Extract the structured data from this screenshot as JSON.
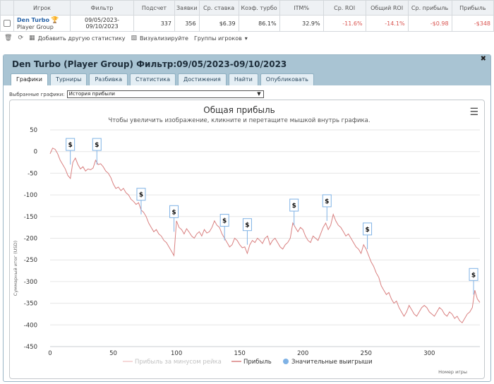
{
  "table": {
    "headers": [
      "Игрок",
      "Фильтр",
      "Подсчет",
      "Заявки",
      "Ср. ставка",
      "Коэф. турбо",
      "ITM%",
      "Ср. ROI",
      "Общий ROI",
      "Ср. прибыль",
      "Прибыль"
    ],
    "row": {
      "player_name": "Den Turbo",
      "player_group": "Player Group",
      "filter_line1": "09/05/2023-",
      "filter_line2": "09/10/2023",
      "count": "337",
      "entries": "356",
      "avg_stake": "$6.39",
      "turbo_coef": "86.1%",
      "itm": "32.9%",
      "avg_roi": "-11.6%",
      "total_roi": "-14.1%",
      "avg_profit": "-$0.98",
      "profit": "-$348"
    }
  },
  "toolbar": {
    "add_stats": "Добавить другую статистику",
    "visualize": "Визуализируйте",
    "player_groups": "Группы игроков"
  },
  "panel": {
    "title": "Den Turbo (Player Group) Фильтр:09/05/2023-09/10/2023",
    "tabs": [
      "Графики",
      "Турниры",
      "Разбивка",
      "Статистика",
      "Достижения",
      "Найти",
      "Опубликовать"
    ],
    "active_tab": 0,
    "select_label": "Выбранные графики:",
    "select_value": "История прибыли"
  },
  "chart_data": {
    "type": "line",
    "title": "Общая прибыль",
    "subtitle": "Чтобы увеличить изображение, кликните и перетащите мышкой внутрь графика.",
    "xlabel": "Номер игры",
    "ylabel": "Суммарный итог (USD)",
    "xlim": [
      0,
      340
    ],
    "ylim": [
      -450,
      50
    ],
    "x_ticks": [
      0,
      50,
      100,
      150,
      200,
      250,
      300
    ],
    "y_ticks": [
      50,
      0,
      -50,
      -100,
      -150,
      -200,
      -250,
      -300,
      -350,
      -400,
      -450
    ],
    "legend": [
      "Прибыль за минусом рейка",
      "Прибыль",
      "Значительные выигрыши"
    ],
    "legend_position": "bottom",
    "colors": {
      "profit": "#d98080",
      "rakeless": "#f2caca",
      "big_win": "#7fb2e5"
    },
    "series": [
      {
        "name": "Прибыль",
        "points": [
          [
            0,
            -5
          ],
          [
            2,
            8
          ],
          [
            4,
            5
          ],
          [
            6,
            -5
          ],
          [
            8,
            -20
          ],
          [
            10,
            -30
          ],
          [
            12,
            -40
          ],
          [
            14,
            -55
          ],
          [
            16,
            -62
          ],
          [
            18,
            -25
          ],
          [
            20,
            -15
          ],
          [
            22,
            -30
          ],
          [
            24,
            -40
          ],
          [
            26,
            -35
          ],
          [
            28,
            -45
          ],
          [
            30,
            -40
          ],
          [
            32,
            -42
          ],
          [
            34,
            -38
          ],
          [
            36,
            -20
          ],
          [
            38,
            -30
          ],
          [
            40,
            -28
          ],
          [
            42,
            -35
          ],
          [
            44,
            -45
          ],
          [
            46,
            -50
          ],
          [
            48,
            -60
          ],
          [
            50,
            -75
          ],
          [
            52,
            -85
          ],
          [
            54,
            -82
          ],
          [
            56,
            -90
          ],
          [
            58,
            -85
          ],
          [
            60,
            -95
          ],
          [
            62,
            -100
          ],
          [
            64,
            -110
          ],
          [
            66,
            -115
          ],
          [
            68,
            -122
          ],
          [
            70,
            -118
          ],
          [
            72,
            -135
          ],
          [
            74,
            -140
          ],
          [
            76,
            -150
          ],
          [
            78,
            -165
          ],
          [
            80,
            -175
          ],
          [
            82,
            -185
          ],
          [
            84,
            -180
          ],
          [
            86,
            -190
          ],
          [
            88,
            -195
          ],
          [
            90,
            -205
          ],
          [
            92,
            -210
          ],
          [
            94,
            -220
          ],
          [
            96,
            -230
          ],
          [
            98,
            -240
          ],
          [
            100,
            -160
          ],
          [
            102,
            -175
          ],
          [
            104,
            -180
          ],
          [
            106,
            -190
          ],
          [
            108,
            -178
          ],
          [
            110,
            -186
          ],
          [
            112,
            -195
          ],
          [
            114,
            -200
          ],
          [
            116,
            -190
          ],
          [
            118,
            -185
          ],
          [
            120,
            -195
          ],
          [
            122,
            -180
          ],
          [
            124,
            -188
          ],
          [
            126,
            -185
          ],
          [
            128,
            -175
          ],
          [
            130,
            -160
          ],
          [
            132,
            -170
          ],
          [
            134,
            -175
          ],
          [
            136,
            -190
          ],
          [
            138,
            -200
          ],
          [
            140,
            -210
          ],
          [
            142,
            -220
          ],
          [
            144,
            -215
          ],
          [
            146,
            -200
          ],
          [
            148,
            -205
          ],
          [
            150,
            -215
          ],
          [
            152,
            -222
          ],
          [
            154,
            -220
          ],
          [
            156,
            -235
          ],
          [
            158,
            -215
          ],
          [
            160,
            -205
          ],
          [
            162,
            -210
          ],
          [
            164,
            -200
          ],
          [
            166,
            -205
          ],
          [
            168,
            -212
          ],
          [
            170,
            -200
          ],
          [
            172,
            -195
          ],
          [
            174,
            -215
          ],
          [
            176,
            -205
          ],
          [
            178,
            -200
          ],
          [
            180,
            -210
          ],
          [
            182,
            -220
          ],
          [
            184,
            -225
          ],
          [
            186,
            -215
          ],
          [
            188,
            -210
          ],
          [
            190,
            -200
          ],
          [
            192,
            -165
          ],
          [
            194,
            -175
          ],
          [
            196,
            -185
          ],
          [
            198,
            -175
          ],
          [
            200,
            -180
          ],
          [
            202,
            -195
          ],
          [
            204,
            -205
          ],
          [
            206,
            -210
          ],
          [
            208,
            -195
          ],
          [
            210,
            -200
          ],
          [
            212,
            -205
          ],
          [
            214,
            -190
          ],
          [
            216,
            -175
          ],
          [
            218,
            -165
          ],
          [
            220,
            -180
          ],
          [
            222,
            -170
          ],
          [
            224,
            -145
          ],
          [
            226,
            -160
          ],
          [
            228,
            -170
          ],
          [
            230,
            -175
          ],
          [
            232,
            -185
          ],
          [
            234,
            -195
          ],
          [
            236,
            -190
          ],
          [
            238,
            -200
          ],
          [
            240,
            -210
          ],
          [
            242,
            -220
          ],
          [
            244,
            -225
          ],
          [
            246,
            -235
          ],
          [
            248,
            -215
          ],
          [
            250,
            -225
          ],
          [
            252,
            -240
          ],
          [
            254,
            -255
          ],
          [
            256,
            -265
          ],
          [
            258,
            -280
          ],
          [
            260,
            -290
          ],
          [
            262,
            -310
          ],
          [
            264,
            -320
          ],
          [
            266,
            -330
          ],
          [
            268,
            -325
          ],
          [
            270,
            -340
          ],
          [
            272,
            -350
          ],
          [
            274,
            -345
          ],
          [
            276,
            -360
          ],
          [
            278,
            -370
          ],
          [
            280,
            -380
          ],
          [
            282,
            -370
          ],
          [
            284,
            -355
          ],
          [
            286,
            -365
          ],
          [
            288,
            -375
          ],
          [
            290,
            -380
          ],
          [
            292,
            -370
          ],
          [
            294,
            -360
          ],
          [
            296,
            -355
          ],
          [
            298,
            -360
          ],
          [
            300,
            -370
          ],
          [
            302,
            -375
          ],
          [
            304,
            -380
          ],
          [
            306,
            -370
          ],
          [
            308,
            -360
          ],
          [
            310,
            -365
          ],
          [
            312,
            -375
          ],
          [
            314,
            -380
          ],
          [
            316,
            -370
          ],
          [
            318,
            -375
          ],
          [
            320,
            -385
          ],
          [
            322,
            -380
          ],
          [
            324,
            -390
          ],
          [
            326,
            -395
          ],
          [
            328,
            -385
          ],
          [
            330,
            -375
          ],
          [
            332,
            -370
          ],
          [
            334,
            -360
          ],
          [
            336,
            -320
          ],
          [
            338,
            -340
          ],
          [
            340,
            -348
          ]
        ]
      }
    ],
    "big_wins": [
      [
        16,
        -30
      ],
      [
        37,
        -30
      ],
      [
        72,
        -145
      ],
      [
        98,
        -185
      ],
      [
        138,
        -205
      ],
      [
        156,
        -215
      ],
      [
        193,
        -170
      ],
      [
        219,
        -160
      ],
      [
        251,
        -225
      ],
      [
        335,
        -330
      ]
    ],
    "big_win_marker": "$"
  }
}
